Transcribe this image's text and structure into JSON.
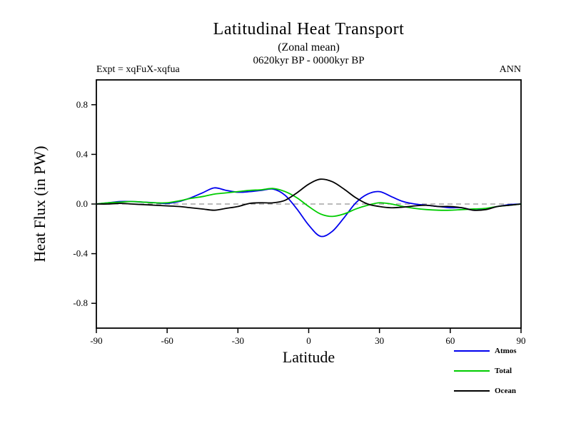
{
  "header": {
    "expt": "Expt = xqFuX-xqfua",
    "season": "ANN"
  },
  "chart_data": {
    "type": "line",
    "title": "Latitudinal Heat Transport",
    "subtitle": "(Zonal mean)",
    "period": "0620kyr BP - 0000kyr BP",
    "xlabel": "Latitude",
    "ylabel": "Heat Flux (in PW)",
    "xlim": [
      -90,
      90
    ],
    "ylim": [
      -1,
      1
    ],
    "grid": false,
    "zero_line": true,
    "zero_line_color": "#777777",
    "legend_position": "bottom-right",
    "x_ticks": {
      "values": [
        -90,
        -60,
        -30,
        0,
        30,
        60,
        90
      ],
      "labels": [
        "-90",
        "-60",
        "-30",
        "0",
        "30",
        "60",
        "90"
      ]
    },
    "y_ticks": {
      "values": [
        -0.8,
        -0.4,
        0.0,
        0.4,
        0.8
      ],
      "labels": [
        "-0.8",
        "-0.4",
        "0.0",
        "0.4",
        "0.8"
      ]
    },
    "x": [
      -90,
      -85,
      -80,
      -75,
      -70,
      -65,
      -60,
      -55,
      -50,
      -45,
      -40,
      -35,
      -30,
      -25,
      -20,
      -15,
      -10,
      -5,
      0,
      5,
      10,
      15,
      20,
      25,
      30,
      35,
      40,
      45,
      50,
      55,
      60,
      65,
      70,
      75,
      80,
      85,
      90
    ],
    "series": [
      {
        "name": "Atmos",
        "color": "#0000ee",
        "values": [
          0,
          0.01,
          0.02,
          0.02,
          0.015,
          0.01,
          0.005,
          0.02,
          0.05,
          0.09,
          0.13,
          0.11,
          0.095,
          0.1,
          0.11,
          0.12,
          0.07,
          -0.04,
          -0.17,
          -0.26,
          -0.22,
          -0.11,
          0.01,
          0.08,
          0.1,
          0.06,
          0.02,
          0.0,
          -0.01,
          -0.02,
          -0.03,
          -0.03,
          -0.05,
          -0.04,
          -0.02,
          -0.005,
          0
        ]
      },
      {
        "name": "Total",
        "color": "#00cc00",
        "values": [
          0,
          0.01,
          0.015,
          0.02,
          0.015,
          0.01,
          0.01,
          0.025,
          0.045,
          0.06,
          0.08,
          0.09,
          0.1,
          0.11,
          0.115,
          0.125,
          0.1,
          0.05,
          -0.02,
          -0.08,
          -0.1,
          -0.08,
          -0.04,
          -0.01,
          0.01,
          0.0,
          -0.02,
          -0.035,
          -0.045,
          -0.05,
          -0.05,
          -0.045,
          -0.04,
          -0.035,
          -0.02,
          -0.01,
          0
        ]
      },
      {
        "name": "Ocean",
        "color": "#000000",
        "values": [
          0,
          0,
          0.005,
          0,
          -0.005,
          -0.01,
          -0.015,
          -0.02,
          -0.03,
          -0.04,
          -0.05,
          -0.035,
          -0.02,
          0.005,
          0.01,
          0.01,
          0.03,
          0.09,
          0.16,
          0.2,
          0.18,
          0.12,
          0.05,
          0.0,
          -0.02,
          -0.03,
          -0.025,
          -0.015,
          -0.01,
          -0.02,
          -0.02,
          -0.03,
          -0.05,
          -0.045,
          -0.02,
          -0.01,
          0
        ]
      }
    ]
  }
}
